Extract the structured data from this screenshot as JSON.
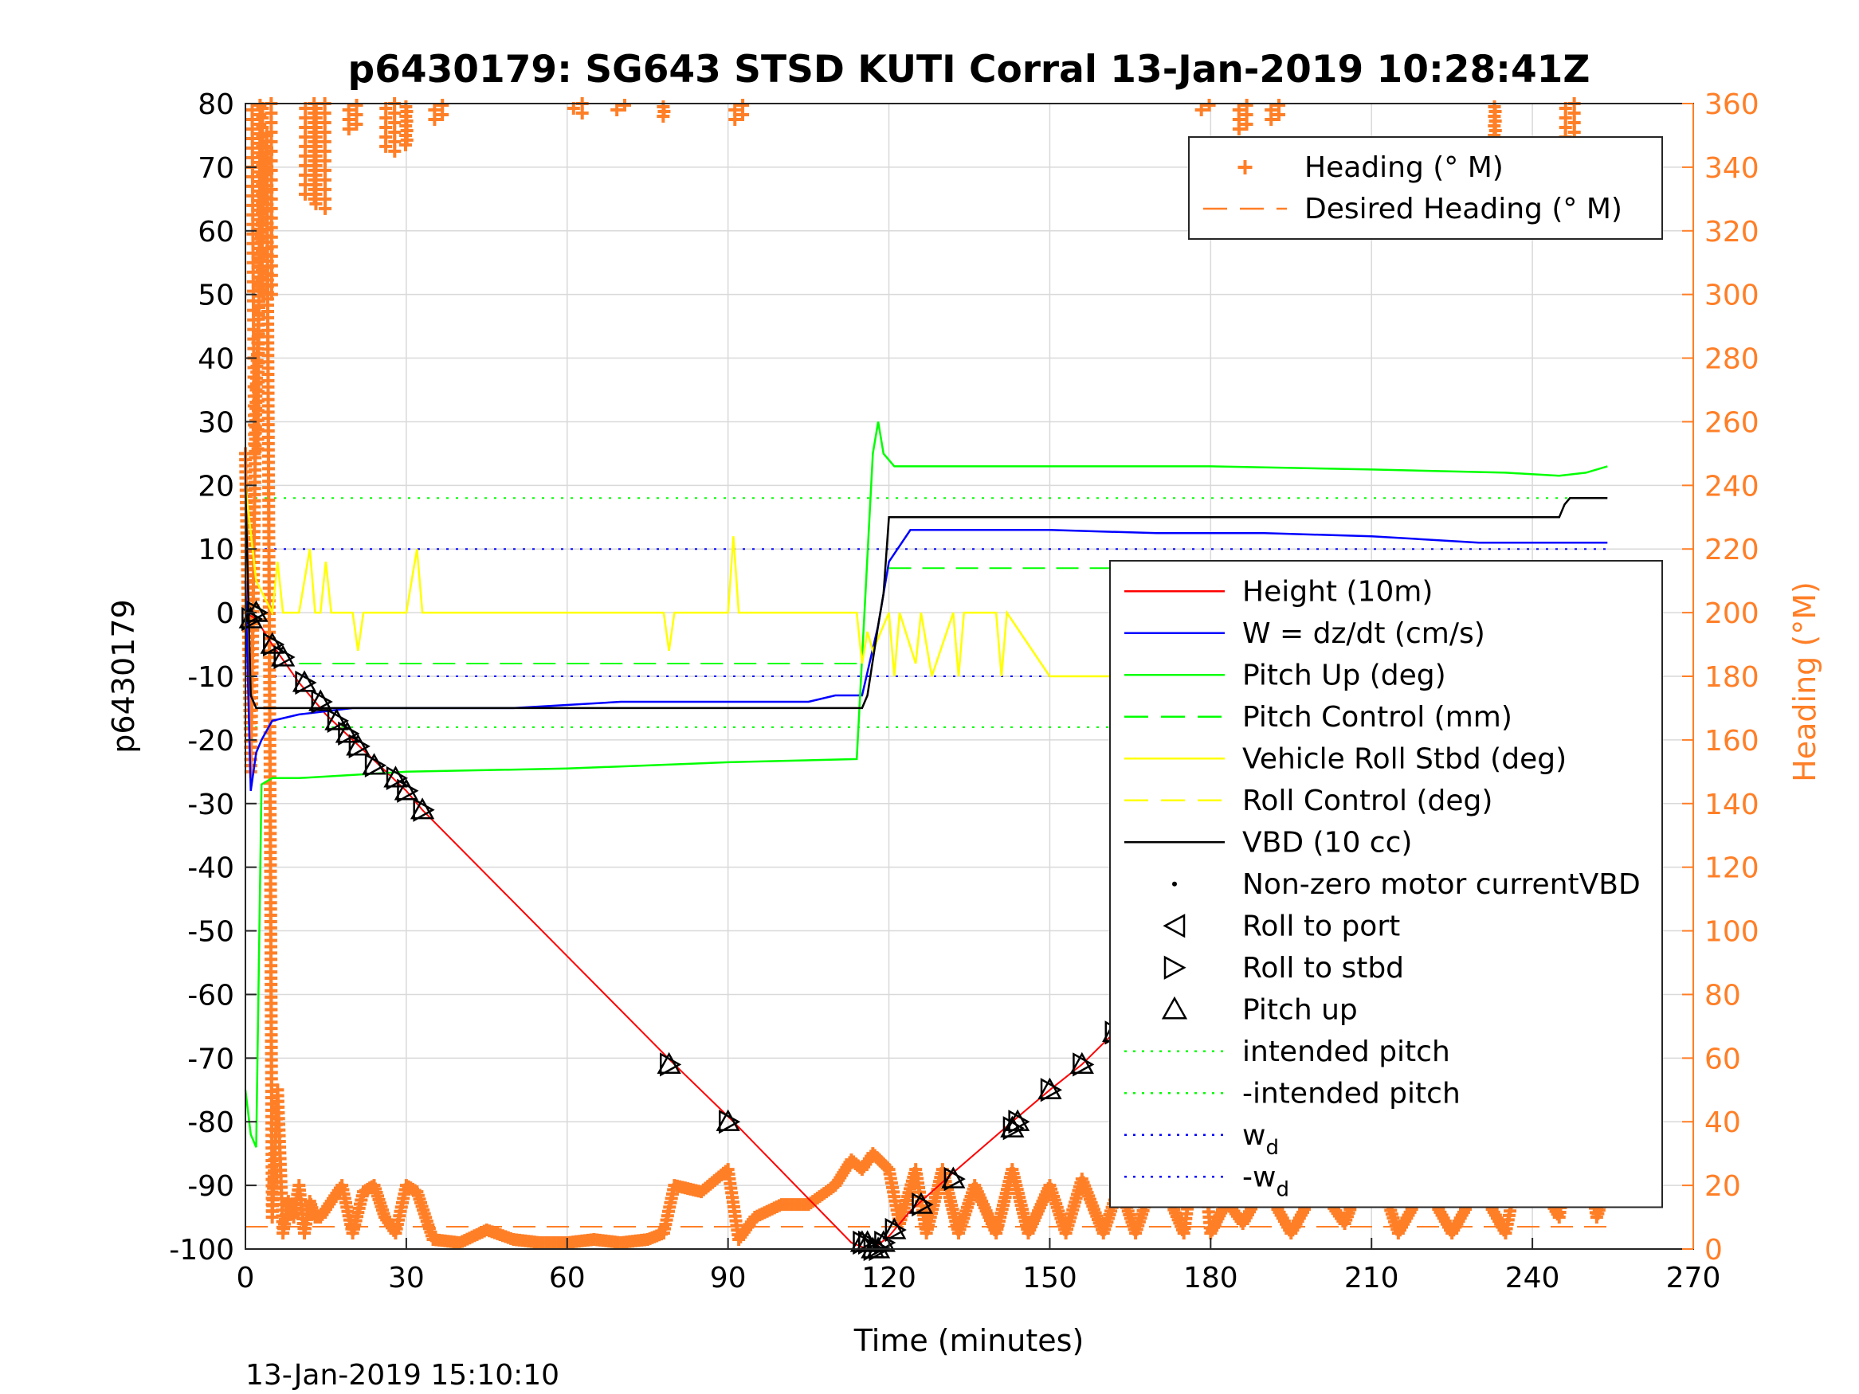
{
  "chart_data": {
    "type": "line",
    "title": "p6430179: SG643 STSD KUTI Corral 13-Jan-2019 10:28:41Z",
    "xlabel": "Time (minutes)",
    "ylabel": "p6430179",
    "ylabel_right": "Heading (°M)",
    "footer": "13-Jan-2019 15:10:10",
    "xlim": [
      0,
      270
    ],
    "ylim": [
      -100,
      80
    ],
    "ylim_right": [
      0,
      360
    ],
    "x_ticks": [
      "0",
      "30",
      "60",
      "90",
      "120",
      "150",
      "180",
      "210",
      "240",
      "270"
    ],
    "y_ticks": [
      "80",
      "70",
      "60",
      "50",
      "40",
      "30",
      "20",
      "10",
      "0",
      "-10",
      "-20",
      "-30",
      "-40",
      "-50",
      "-60",
      "-70",
      "-80",
      "-90",
      "-100"
    ],
    "y_right_ticks": [
      "360",
      "340",
      "320",
      "300",
      "280",
      "260",
      "240",
      "220",
      "200",
      "180",
      "160",
      "140",
      "120",
      "100",
      "80",
      "60",
      "40",
      "20",
      "0"
    ],
    "grid": true,
    "legend_top": {
      "position": "top-right",
      "entries": [
        {
          "label": "Heading (° M)",
          "color": "#ff7f27",
          "style": "plus"
        },
        {
          "label": "Desired Heading (° M)",
          "color": "#ff7f27",
          "style": "dashed"
        }
      ]
    },
    "legend_main": {
      "position": "right",
      "entries": [
        {
          "label": "Height (10m)",
          "color": "#ff0000",
          "style": "solid"
        },
        {
          "label": "W = dz/dt (cm/s)",
          "color": "#0000ff",
          "style": "solid"
        },
        {
          "label": "Pitch Up (deg)",
          "color": "#00ff00",
          "style": "solid"
        },
        {
          "label": "Pitch Control (mm)",
          "color": "#00ff00",
          "style": "dashed"
        },
        {
          "label": "Vehicle Roll Stbd (deg)",
          "color": "#ffff00",
          "style": "solid"
        },
        {
          "label": "Roll Control (deg)",
          "color": "#ffff00",
          "style": "dashed"
        },
        {
          "label": "VBD (10 cc)",
          "color": "#000000",
          "style": "solid"
        },
        {
          "label": "Non-zero motor currentVBD",
          "color": "#000000",
          "style": "dot"
        },
        {
          "label": "Roll to port",
          "color": "#000000",
          "style": "tri-left"
        },
        {
          "label": "Roll to stbd",
          "color": "#000000",
          "style": "tri-right"
        },
        {
          "label": "Pitch up",
          "color": "#000000",
          "style": "tri-up"
        },
        {
          "label": "intended pitch",
          "color": "#00ff00",
          "style": "dotted"
        },
        {
          "label": "-intended pitch",
          "color": "#00ff00",
          "style": "dotted"
        },
        {
          "label": "w",
          "sub": "d",
          "color": "#0000ff",
          "style": "dotted"
        },
        {
          "label": "-w",
          "sub": "d",
          "color": "#0000ff",
          "style": "dotted"
        }
      ]
    },
    "series": [
      {
        "name": "Height (10m)",
        "color": "#ff0000",
        "x": [
          0,
          2,
          5,
          10,
          15,
          20,
          25,
          30,
          33,
          80,
          91,
          113,
          116,
          117,
          120,
          124,
          132,
          143,
          150,
          156,
          162,
          168,
          179,
          190,
          200,
          212,
          227,
          232,
          236,
          240,
          244,
          248,
          251,
          254
        ],
        "y": [
          0,
          -1,
          -5,
          -11,
          -16,
          -20,
          -24,
          -28,
          -31,
          -71,
          -80,
          -99,
          -100,
          -100,
          -98,
          -94,
          -88,
          -80,
          -75,
          -71,
          -66,
          -62,
          -53,
          -44,
          -36,
          -28,
          -18,
          -15,
          -12,
          -9,
          -6,
          -4,
          -3,
          -2
        ]
      },
      {
        "name": "W = dz/dt (cm/s)",
        "color": "#0000ff",
        "x": [
          0,
          1,
          2,
          3,
          5,
          10,
          20,
          30,
          50,
          70,
          90,
          100,
          105,
          110,
          115,
          118,
          120,
          124,
          130,
          150,
          170,
          190,
          210,
          230,
          240,
          250,
          254
        ],
        "y": [
          5,
          -28,
          -22,
          -20,
          -17,
          -16,
          -15,
          -15,
          -15,
          -14,
          -14,
          -14,
          -14,
          -13,
          -13,
          -2,
          8,
          13,
          13,
          13,
          12.5,
          12.5,
          12,
          11,
          11,
          11,
          11
        ]
      },
      {
        "name": "Pitch Up (deg)",
        "color": "#00ff00",
        "x": [
          0,
          1,
          2,
          3,
          5,
          10,
          30,
          60,
          90,
          114,
          117,
          118,
          119,
          121,
          125,
          150,
          180,
          210,
          235,
          245,
          250,
          254
        ],
        "y": [
          -75,
          -82,
          -84,
          -27,
          -26,
          -26,
          -25,
          -24.5,
          -23.5,
          -23,
          25,
          30,
          25,
          23,
          23,
          23,
          23,
          22.5,
          22,
          21.5,
          22,
          23
        ]
      },
      {
        "name": "Vehicle Roll Stbd (deg)",
        "color": "#ffff00",
        "x": [
          0,
          2,
          5,
          6,
          7,
          8,
          10,
          12,
          13,
          14,
          15,
          16,
          20,
          21,
          22,
          30,
          32,
          33,
          34,
          50,
          78,
          79,
          80,
          90,
          91,
          92,
          114,
          115,
          116,
          117,
          120,
          121,
          122,
          125,
          126,
          128,
          132,
          133,
          134,
          140,
          141,
          142,
          150,
          160,
          170,
          180,
          200,
          220,
          240,
          248,
          249,
          250,
          254
        ],
        "y": [
          20,
          5,
          0,
          8,
          0,
          0,
          0,
          10,
          0,
          0,
          8,
          0,
          0,
          -6,
          0,
          0,
          10,
          0,
          0,
          0,
          0,
          -6,
          0,
          0,
          12,
          0,
          0,
          -8,
          -3,
          -6,
          0,
          -10,
          0,
          -8,
          0,
          -10,
          0,
          -10,
          0,
          0,
          -10,
          0,
          -10,
          -10,
          -10,
          -10,
          -10,
          -10,
          -10,
          -10,
          0,
          5,
          6
        ]
      },
      {
        "name": "VBD (10 cc)",
        "color": "#000000",
        "x": [
          0,
          1,
          2,
          3,
          115,
          116,
          118,
          119,
          120,
          121,
          240,
          245,
          246,
          247,
          254
        ],
        "y": [
          20,
          -13,
          -15,
          -15,
          -15,
          -13,
          -2,
          3,
          15,
          15,
          15,
          15,
          17,
          18,
          18
        ]
      }
    ],
    "reference_lines": [
      {
        "name": "intended pitch",
        "y": 18,
        "color": "#00ff00",
        "style": "dotted"
      },
      {
        "name": "-intended pitch",
        "y": -18,
        "color": "#00ff00",
        "style": "dotted"
      },
      {
        "name": "w_d",
        "y": 10,
        "color": "#0000ff",
        "style": "dotted"
      },
      {
        "name": "-w_d",
        "y": -10,
        "color": "#0000ff",
        "style": "dotted"
      },
      {
        "name": "Pitch Control (mm)",
        "segments": [
          {
            "x": [
              10,
              116
            ],
            "y": -8
          },
          {
            "x": [
              120,
              254
            ],
            "y": 7
          }
        ],
        "color": "#00ff00",
        "style": "dashed"
      },
      {
        "name": "Desired Heading (° M)",
        "x": [
          0,
          254
        ],
        "y_right": 7,
        "color": "#ff7f27",
        "style": "dashed"
      }
    ],
    "heading_series": {
      "name": "Heading (° M)",
      "color": "#ff7f27",
      "marker": "+",
      "x": [
        0,
        1,
        2,
        3,
        4,
        5,
        6,
        7,
        8,
        9,
        10,
        11,
        12,
        13,
        14,
        16,
        18,
        20,
        22,
        24,
        26,
        28,
        30,
        32,
        35,
        40,
        45,
        50,
        55,
        60,
        65,
        70,
        75,
        78,
        80,
        85,
        90,
        92,
        95,
        100,
        105,
        110,
        113,
        115,
        117,
        120,
        122,
        125,
        127,
        130,
        133,
        136,
        140,
        143,
        146,
        150,
        153,
        156,
        160,
        163,
        166,
        170,
        175,
        178,
        180,
        183,
        186,
        190,
        195,
        200,
        205,
        210,
        215,
        220,
        225,
        230,
        235,
        238,
        240,
        245,
        248,
        250,
        252,
        254
      ],
      "y": [
        250,
        150,
        270,
        320,
        350,
        10,
        50,
        5,
        15,
        10,
        20,
        5,
        15,
        10,
        10,
        15,
        20,
        5,
        18,
        20,
        10,
        5,
        20,
        18,
        3,
        2,
        6,
        3,
        2,
        2,
        3,
        2,
        3,
        5,
        20,
        18,
        25,
        3,
        10,
        14,
        14,
        20,
        28,
        25,
        30,
        25,
        8,
        25,
        5,
        25,
        5,
        20,
        5,
        25,
        5,
        20,
        5,
        22,
        5,
        20,
        5,
        25,
        5,
        40,
        5,
        15,
        8,
        20,
        5,
        20,
        8,
        30,
        5,
        20,
        5,
        20,
        5,
        30,
        25,
        10,
        45,
        30,
        10,
        20
      ]
    },
    "heading_top_clusters": [
      {
        "x": 2,
        "top": 360,
        "bottom": 250
      },
      {
        "x": 4,
        "top": 360,
        "bottom": 300
      },
      {
        "x": 12,
        "top": 360,
        "bottom": 330
      },
      {
        "x": 14,
        "top": 360,
        "bottom": 327
      },
      {
        "x": 20,
        "top": 360,
        "bottom": 352
      },
      {
        "x": 27,
        "top": 360,
        "bottom": 345
      },
      {
        "x": 30,
        "top": 360,
        "bottom": 347
      },
      {
        "x": 36,
        "top": 360,
        "bottom": 355
      },
      {
        "x": 62,
        "top": 360,
        "bottom": 357
      },
      {
        "x": 70,
        "top": 360,
        "bottom": 358
      },
      {
        "x": 78,
        "top": 360,
        "bottom": 356
      },
      {
        "x": 92,
        "top": 360,
        "bottom": 355
      },
      {
        "x": 179,
        "top": 360,
        "bottom": 358
      },
      {
        "x": 186,
        "top": 360,
        "bottom": 352
      },
      {
        "x": 192,
        "top": 360,
        "bottom": 355
      },
      {
        "x": 233,
        "top": 360,
        "bottom": 350
      },
      {
        "x": 247,
        "top": 360,
        "bottom": 345
      }
    ],
    "markers": {
      "x": [
        1,
        2,
        5,
        7,
        11,
        14,
        17,
        19,
        21,
        24,
        28,
        30,
        33,
        79,
        90,
        115,
        116,
        117,
        118,
        119,
        121,
        126,
        132,
        143,
        144,
        150,
        156,
        162,
        168,
        179,
        190,
        201,
        212,
        227,
        230,
        233,
        236,
        238,
        240,
        243,
        245,
        248,
        249,
        250,
        251,
        252,
        254
      ],
      "y": [
        -1,
        0,
        -5,
        -7,
        -11,
        -14,
        -17,
        -19,
        -21,
        -24,
        -26,
        -28,
        -31,
        -71,
        -80,
        -99,
        -99,
        -100,
        -100,
        -99,
        -97,
        -93,
        -89,
        -81,
        -80,
        -75,
        -71,
        -66,
        -62,
        -53,
        -44,
        -36,
        -28,
        -18,
        -16,
        -14,
        -12,
        -11,
        -9,
        -8,
        -6,
        -5,
        -4,
        -4,
        -3,
        -2,
        -1
      ]
    }
  }
}
